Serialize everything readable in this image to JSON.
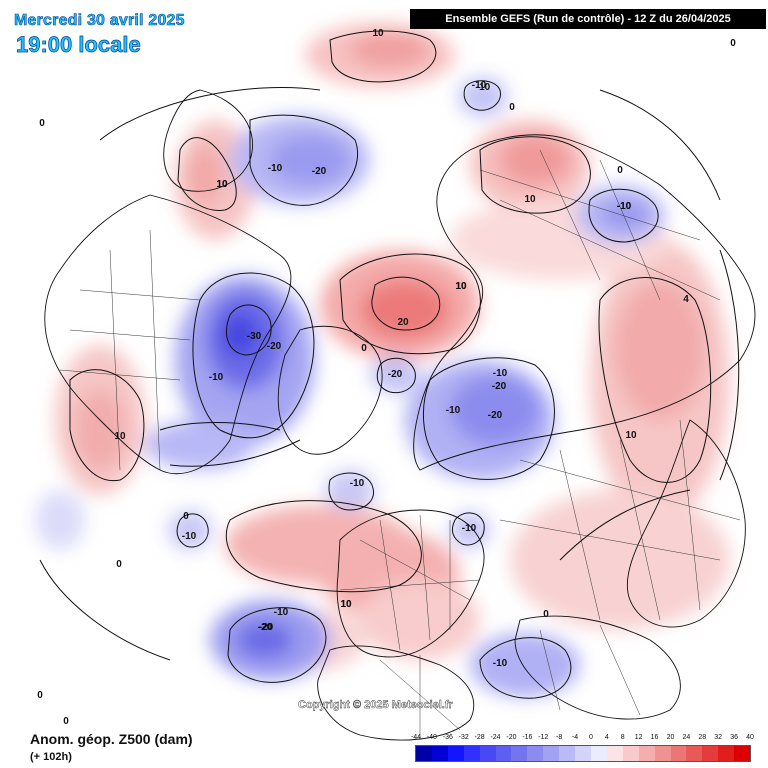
{
  "header": {
    "date_label": "Mercredi 30 avril 2025",
    "time_label": "19:00 locale",
    "run_label": "Ensemble GEFS  (Run de contrôle)  -  12 Z du 26/04/2025"
  },
  "footer": {
    "copyright": "Copyright © 2025 Meteociel.fr",
    "variable_label": "Anom. géop. Z500 (dam)",
    "lead_time_label": "(+ 102h)"
  },
  "legend": {
    "ticks": [
      "-44",
      "-40",
      "-36",
      "-32",
      "-28",
      "-24",
      "-20",
      "-16",
      "-12",
      "-8",
      "-4",
      "0",
      "4",
      "8",
      "12",
      "16",
      "20",
      "24",
      "28",
      "32",
      "36",
      "40"
    ],
    "colors": [
      "#0000a8",
      "#0000d6",
      "#1414ff",
      "#3030ff",
      "#4848f4",
      "#5e5ef0",
      "#7474ee",
      "#8c8cf0",
      "#a2a2f2",
      "#babaf6",
      "#d4d4fa",
      "#ececfc",
      "#fce4e4",
      "#f8caca",
      "#f4aeae",
      "#f09292",
      "#ec7676",
      "#e85a5a",
      "#e43c3c",
      "#e01e1e",
      "#dc0000"
    ]
  },
  "map": {
    "contour_labels": [
      "10",
      "0",
      "-10",
      "-10",
      "-20",
      "10",
      "-10",
      "-10",
      "10",
      "0",
      "0",
      "10",
      "-10",
      "-10",
      "4",
      "-30",
      "-20",
      "-20",
      "20",
      "10",
      "0",
      "-10",
      "-20",
      "-20",
      "-10",
      "-20",
      "10",
      "10",
      "-10",
      "-10",
      "-10",
      "10",
      "0",
      "0",
      "0",
      "-10",
      "-20",
      "10",
      "10",
      "-10",
      "0",
      "0",
      "0"
    ]
  }
}
